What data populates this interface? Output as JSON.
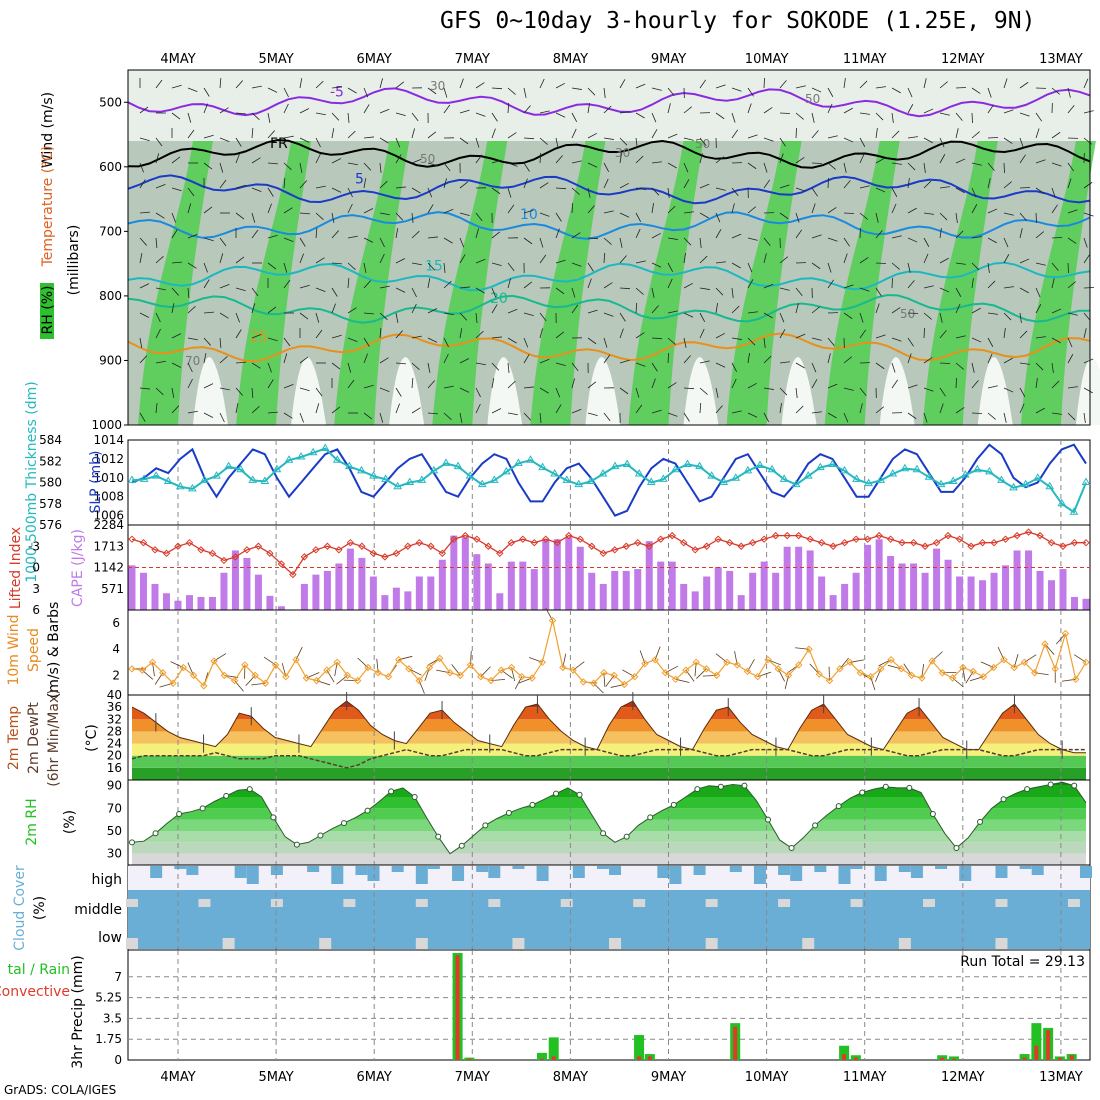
{
  "title": "GFS 0~10day 3-hourly for SOKODE (1.25E, 9N)",
  "credit": "GrADS: COLA/IGES",
  "dates": [
    "4MAY",
    "5MAY",
    "6MAY",
    "7MAY",
    "8MAY",
    "9MAY",
    "10MAY",
    "11MAY",
    "12MAY",
    "13MAY"
  ],
  "colors": {
    "cape_bar": "#c07be8",
    "slp_line": "#1a3ac8",
    "thickness_line": "#25b8c0",
    "lifted_index": "#d83a2a",
    "wind_speed": "#f0a030",
    "precip_total": "#22c022",
    "precip_conv": "#e03a2a",
    "cloud": "#6aaed6",
    "rh_green": "#22c022"
  },
  "chart_data": [
    {
      "panel": "upper-air",
      "type": "heatmap",
      "ylabels": [
        "Wind (m/s)",
        "Temperature (°C)",
        "RH (%)",
        "(millibars)"
      ],
      "ylim": [
        1000,
        450
      ],
      "yticks": [
        500,
        600,
        700,
        800,
        900,
        1000
      ],
      "isotherm_labels": [
        {
          "label": "-5",
          "level": 500
        },
        {
          "label": "FR",
          "level": 580
        },
        {
          "label": "5",
          "level": 635
        },
        {
          "label": "10",
          "level": 690
        },
        {
          "label": "15",
          "level": 770
        },
        {
          "label": "20",
          "level": 820
        },
        {
          "label": "25",
          "level": 880
        }
      ],
      "rh_labels": [
        "30",
        "50",
        "50",
        "30",
        "50",
        "70",
        "50"
      ]
    },
    {
      "panel": "pressure-thickness",
      "type": "line",
      "ylabel_left": "1000-500mb Thickness (dm)",
      "ylabel_right": "SLP (mb)",
      "left_ticks": [
        576,
        578,
        580,
        582,
        584
      ],
      "right_ticks": [
        1006,
        1008,
        1010,
        1012,
        1014
      ],
      "series": [
        {
          "name": "SLP (mb)",
          "axis": "right",
          "values": [
            1009.5,
            1010,
            1011,
            1010.5,
            1012,
            1013,
            1010,
            1008,
            1010,
            1011.5,
            1013,
            1012.5,
            1010,
            1008,
            1009.5,
            1011,
            1012.5,
            1013,
            1011,
            1008.5,
            1008,
            1009.5,
            1011,
            1012,
            1012.5,
            1010.5,
            1008.5,
            1008,
            1010,
            1011.5,
            1012.5,
            1012,
            1009.5,
            1007.5,
            1007.5,
            1009.5,
            1011,
            1011.5,
            1010,
            1008,
            1006,
            1006.5,
            1009,
            1011,
            1012,
            1011.5,
            1009.5,
            1007.5,
            1008,
            1010,
            1012,
            1012.5,
            1010.5,
            1008.5,
            1008,
            1009.5,
            1011.5,
            1012.5,
            1012,
            1010,
            1008,
            1008,
            1010,
            1012,
            1013,
            1012.5,
            1010.5,
            1008.5,
            1008.5,
            1010,
            1012,
            1013.5,
            1012.5,
            1010,
            1009,
            1009.5,
            1011.5,
            1013,
            1013.5,
            1011.5
          ]
        },
        {
          "name": "1000-500mb Thickness (dm)",
          "axis": "left",
          "values": [
            580.2,
            580.3,
            580.6,
            580.1,
            579.6,
            579.4,
            580.2,
            580.6,
            581.5,
            581.2,
            580.2,
            580.1,
            581.2,
            582.1,
            582.4,
            582.8,
            583.2,
            582.1,
            581.5,
            581.1,
            580.6,
            580.3,
            579.6,
            580.0,
            580.2,
            581.1,
            581.8,
            581.5,
            580.6,
            579.8,
            580.2,
            581.0,
            581.8,
            582.1,
            581.4,
            580.8,
            580.2,
            579.8,
            580.1,
            580.8,
            581.5,
            581.7,
            580.8,
            580.0,
            580.3,
            581.2,
            581.7,
            581.5,
            580.6,
            580.0,
            580.4,
            581.1,
            581.6,
            581.2,
            580.3,
            579.8,
            580.6,
            581.4,
            581.7,
            581.1,
            580.3,
            579.9,
            580.2,
            580.8,
            581.3,
            581.2,
            580.5,
            579.8,
            580.1,
            580.7,
            581.2,
            581.0,
            580.2,
            579.5,
            579.8,
            580.4,
            579.6,
            578.0,
            577.2,
            580.0
          ]
        }
      ]
    },
    {
      "panel": "stability",
      "type": "bar",
      "ylabel_left": "Lifted Index",
      "ylabel_right": "CAPE (J/kg)",
      "left_ticks": [
        -3,
        0,
        3,
        6
      ],
      "right_ticks": [
        571,
        1142,
        1713,
        2284
      ],
      "series": [
        {
          "name": "CAPE (J/kg)",
          "axis": "right",
          "values": [
            1200,
            1000,
            700,
            450,
            250,
            400,
            350,
            350,
            1000,
            1600,
            1400,
            950,
            380,
            100,
            10,
            700,
            950,
            1050,
            1250,
            1650,
            1400,
            900,
            400,
            600,
            500,
            900,
            900,
            1350,
            2000,
            1950,
            1500,
            1250,
            450,
            1300,
            1300,
            1100,
            1900,
            1900,
            1950,
            1700,
            1000,
            700,
            1050,
            1050,
            1100,
            1850,
            1300,
            1300,
            700,
            500,
            900,
            1150,
            1050,
            400,
            1000,
            1300,
            1000,
            1700,
            1700,
            1600,
            900,
            400,
            700,
            1000,
            1750,
            1900,
            1450,
            1250,
            1250,
            1000,
            1650,
            1350,
            900,
            900,
            800,
            1000,
            1200,
            1600,
            1600,
            1050,
            800,
            1100,
            350,
            300
          ]
        },
        {
          "name": "Lifted Index",
          "axis": "left",
          "values": [
            -4,
            -3.5,
            -2.5,
            -2,
            -3,
            -3.5,
            -2.5,
            -2,
            -1,
            -1.5,
            -2.5,
            -3,
            -2,
            -0.5,
            1,
            -1.5,
            -2.5,
            -3,
            -2.5,
            -3.5,
            -3,
            -2,
            -1.5,
            -2,
            -3,
            -3.5,
            -3,
            -2,
            -4,
            -4.5,
            -4,
            -3,
            -2,
            -3.5,
            -4,
            -3.5,
            -4,
            -3.5,
            -4.5,
            -4,
            -3,
            -2,
            -2.5,
            -3,
            -3.5,
            -3,
            -4,
            -4.5,
            -3.5,
            -2.5,
            -3,
            -4,
            -3.5,
            -3,
            -3.5,
            -4,
            -4.5,
            -4.5,
            -4.5,
            -4,
            -3.5,
            -3,
            -3.5,
            -4,
            -4,
            -4.5,
            -4,
            -3.5,
            -3.5,
            -3,
            -3.5,
            -4.5,
            -4,
            -3,
            -3.5,
            -3.5,
            -4,
            -4.5,
            -5,
            -4.5,
            -3.5,
            -3,
            -3.5,
            -3.5
          ]
        }
      ]
    },
    {
      "panel": "wind10m",
      "type": "line",
      "ylabel": "10m Wind Speed (m/s) & Barbs",
      "yticks": [
        2,
        4,
        6
      ],
      "series": [
        {
          "name": "10m Wind Speed (m/s)",
          "values": [
            2.5,
            2.4,
            3.0,
            2.2,
            1.4,
            2.6,
            2.0,
            1.2,
            3.1,
            2.0,
            1.6,
            2.8,
            2.0,
            1.4,
            2.8,
            1.9,
            3.2,
            1.8,
            1.6,
            2.4,
            3.0,
            2.0,
            1.6,
            2.6,
            2.2,
            1.9,
            3.2,
            2.5,
            1.6,
            2.6,
            3.3,
            2.2,
            2.0,
            2.8,
            1.9,
            1.6,
            2.4,
            2.6,
            1.9,
            1.8,
            3.0,
            6.2,
            2.6,
            2.4,
            1.5,
            1.4,
            2.2,
            2.0,
            1.3,
            1.9,
            2.9,
            3.2,
            2.2,
            1.7,
            2.4,
            3.0,
            2.5,
            2.0,
            3.0,
            2.8,
            2.3,
            1.9,
            3.2,
            2.5,
            2.0,
            2.8,
            4.0,
            2.1,
            1.6,
            2.5,
            3.0,
            2.2,
            1.9,
            2.5,
            3.2,
            2.5,
            2.0,
            1.8,
            3.1,
            2.2,
            1.8,
            2.6,
            2.3,
            1.9,
            2.6,
            3.2,
            2.6,
            3.0,
            2.2,
            4.4,
            2.5,
            5.2,
            1.7,
            3.0
          ]
        }
      ]
    },
    {
      "panel": "temperature",
      "type": "area",
      "ylabel": "2m Temp 2m DewPt (6hr Min/Max) (°C)",
      "yticks": [
        16,
        20,
        24,
        28,
        32,
        36,
        40
      ],
      "series": [
        {
          "name": "2m Temp",
          "values": [
            36,
            34,
            31,
            28,
            26,
            25,
            24,
            23,
            27,
            34,
            33,
            29,
            26,
            25,
            24,
            23,
            29,
            35,
            38,
            35,
            30,
            27,
            25,
            24,
            29,
            34,
            35,
            31,
            28,
            25,
            24,
            23,
            30,
            36,
            37,
            32,
            28,
            25,
            23,
            22,
            30,
            36,
            38,
            32,
            27,
            25,
            23,
            22,
            29,
            35,
            36,
            31,
            27,
            25,
            23,
            22,
            29,
            35,
            37,
            32,
            27,
            25,
            23,
            22,
            28,
            34,
            36,
            31,
            26,
            24,
            22,
            22,
            28,
            34,
            37,
            32,
            27,
            24,
            22,
            21,
            21
          ]
        },
        {
          "name": "2m DewPt",
          "values": [
            19,
            20,
            20,
            20,
            20,
            20,
            20,
            21,
            20,
            19,
            19,
            19,
            20,
            20,
            20,
            19,
            18,
            17,
            16,
            17,
            19,
            20,
            21,
            22,
            21,
            20,
            20,
            21,
            22,
            22,
            22,
            22,
            21,
            20,
            20,
            21,
            22,
            22,
            22,
            22,
            21,
            20,
            20,
            21,
            22,
            22,
            22,
            22,
            21,
            20,
            20,
            21,
            22,
            22,
            22,
            22,
            21,
            20,
            20,
            21,
            22,
            22,
            22,
            22,
            21,
            20,
            20,
            21,
            22,
            22,
            22,
            22,
            21,
            20,
            20,
            21,
            22,
            22,
            22,
            22,
            22
          ]
        }
      ]
    },
    {
      "panel": "humidity",
      "type": "area",
      "ylabel": "2m RH (%)",
      "yticks": [
        30,
        50,
        70,
        90
      ],
      "series": [
        {
          "name": "2m RH",
          "values": [
            40,
            41,
            48,
            57,
            65,
            67,
            70,
            76,
            81,
            86,
            87,
            80,
            62,
            45,
            38,
            40,
            46,
            52,
            57,
            62,
            68,
            76,
            85,
            88,
            80,
            62,
            45,
            30,
            37,
            46,
            55,
            61,
            66,
            70,
            73,
            78,
            83,
            88,
            82,
            65,
            48,
            40,
            45,
            55,
            62,
            68,
            73,
            80,
            87,
            90,
            89,
            91,
            90,
            77,
            60,
            42,
            35,
            44,
            55,
            64,
            72,
            79,
            84,
            87,
            89,
            88,
            88,
            84,
            65,
            48,
            35,
            44,
            58,
            70,
            78,
            83,
            87,
            89,
            91,
            93,
            90,
            75
          ]
        }
      ]
    },
    {
      "panel": "cloud",
      "type": "heatmap",
      "ylabel": "Cloud Cover (%)",
      "rows": [
        "high",
        "middle",
        "low"
      ]
    },
    {
      "panel": "precip",
      "type": "bar",
      "ylabel": "3hr Precip (mm)",
      "ylabel_left": "Total / Rain Convective",
      "yticks": [
        0,
        1.75,
        3.5,
        5.25,
        7
      ],
      "annotation": "Run Total = 29.13",
      "bars": [
        {
          "date_index": 2.85,
          "total": 9.0,
          "conv": 8.8
        },
        {
          "date_index": 2.97,
          "total": 0.2,
          "conv": 0.1
        },
        {
          "date_index": 3.71,
          "total": 0.6,
          "conv": 0.1
        },
        {
          "date_index": 3.83,
          "total": 1.9,
          "conv": 0.3
        },
        {
          "date_index": 4.7,
          "total": 2.1,
          "conv": 0.3
        },
        {
          "date_index": 4.81,
          "total": 0.5,
          "conv": 0.3
        },
        {
          "date_index": 5.68,
          "total": 3.1,
          "conv": 2.8
        },
        {
          "date_index": 6.79,
          "total": 1.2,
          "conv": 0.5
        },
        {
          "date_index": 6.91,
          "total": 0.4,
          "conv": 0.2
        },
        {
          "date_index": 7.79,
          "total": 0.4,
          "conv": 0.2
        },
        {
          "date_index": 7.91,
          "total": 0.3,
          "conv": 0.1
        },
        {
          "date_index": 8.63,
          "total": 0.5,
          "conv": 0.2
        },
        {
          "date_index": 8.75,
          "total": 3.1,
          "conv": 1.2
        },
        {
          "date_index": 8.87,
          "total": 2.7,
          "conv": 2.5
        },
        {
          "date_index": 8.99,
          "total": 0.3,
          "conv": 0.2
        },
        {
          "date_index": 9.11,
          "total": 0.5,
          "conv": 0.4
        }
      ]
    }
  ]
}
